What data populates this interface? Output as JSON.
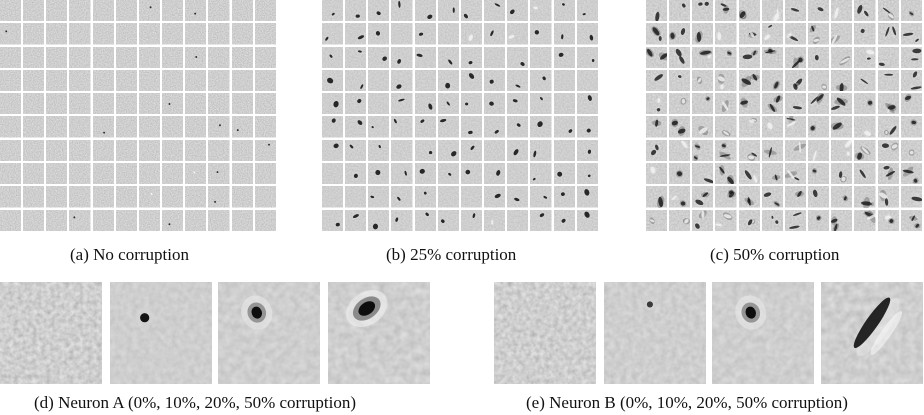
{
  "figure": {
    "top_row": [
      {
        "id": "a",
        "caption": "(a)  No corruption",
        "variant": "none"
      },
      {
        "id": "b",
        "caption": "(b)  25% corruption",
        "variant": "blobs"
      },
      {
        "id": "c",
        "caption": "(c)  50% corruption",
        "variant": "strokes"
      }
    ],
    "bottom_row": [
      {
        "id": "d",
        "caption": "(d)  Neuron A (0%, 10%, 20%, 50% corruption)",
        "panels": [
          "noise",
          "dot",
          "dot-halo",
          "blob"
        ]
      },
      {
        "id": "e",
        "caption": "(e)  Neuron B (0%, 10%, 20%, 50% corruption)",
        "panels": [
          "noise",
          "faint-dot",
          "dot-halo",
          "stroke"
        ]
      }
    ],
    "grid": {
      "rows": 10,
      "cols": 12
    }
  }
}
